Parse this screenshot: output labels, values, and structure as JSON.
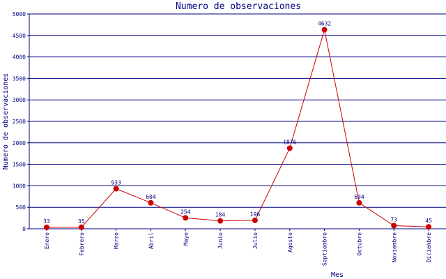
{
  "colors": {
    "axis": "#000080",
    "grid": "#000080",
    "series": "#cc0000",
    "text": "#000080",
    "background": "#ffffff"
  },
  "chart_data": {
    "type": "line",
    "title": "Numero de observaciones",
    "xlabel": "Mes",
    "ylabel": "Numero de observaciones",
    "ylim": [
      0,
      5000
    ],
    "yticks": [
      0,
      500,
      1000,
      1500,
      2000,
      2500,
      3000,
      3500,
      4000,
      4500,
      5000
    ],
    "grid": true,
    "categories": [
      "Enero",
      "Febrero",
      "Marzo",
      "Abril",
      "Mayo",
      "Junio",
      "Julio",
      "Agosto",
      "Septiembre",
      "Octubre",
      "Noviembre",
      "Diciembre"
    ],
    "series": [
      {
        "values": [
          33,
          35,
          933,
          604,
          254,
          184,
          196,
          1876,
          4632,
          604,
          73,
          45
        ]
      }
    ]
  }
}
